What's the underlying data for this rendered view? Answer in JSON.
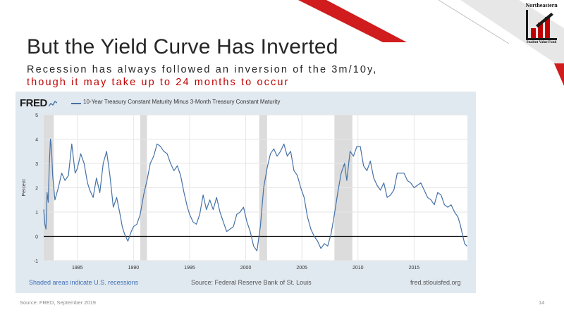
{
  "slide": {
    "title": "But the Yield Curve Has Inverted",
    "subtitle_line1": "Recession has always followed an inversion of the 3m/10y,",
    "subtitle_line2": "though it may take up to 24 months to occur",
    "source": "Source: FRED, September 2019",
    "page_number": "14",
    "colors": {
      "accent_red": "#c00000",
      "title_text": "#262626",
      "deco_gray": "#d9d9d9"
    }
  },
  "logo": {
    "top_text": "Northeastern",
    "bottom_text": "Student Value Fund",
    "icon": "bar-chart-logo-icon"
  },
  "fred": {
    "brand": "FRED",
    "legend": "10-Year Treasury Constant Maturity Minus 3-Month Treasury Constant Maturity",
    "note_left": "Shaded areas indicate U.S. recessions",
    "note_mid": "Source: Federal Reserve Bank of St. Louis",
    "note_right": "fred.stlouisfed.org",
    "panel_color": "#e1e9f0",
    "line_color": "#4572a7",
    "recession_color": "#dcdcdc"
  },
  "chart_data": {
    "type": "line",
    "title": "10-Year Treasury Constant Maturity Minus 3-Month Treasury Constant Maturity",
    "xlabel": "",
    "ylabel": "Percent",
    "xlim": [
      1982.0,
      2019.75
    ],
    "ylim": [
      -1,
      5
    ],
    "yticks": [
      -1,
      0,
      1,
      2,
      3,
      4,
      5
    ],
    "xticks": [
      1985,
      1990,
      1995,
      2000,
      2005,
      2010,
      2015
    ],
    "grid": true,
    "recessions": [
      [
        1982.0,
        1982.9
      ],
      [
        1990.6,
        1991.2
      ],
      [
        2001.2,
        2001.9
      ],
      [
        2007.9,
        2009.5
      ]
    ],
    "reference_line": 0,
    "series": [
      {
        "x": [
          1982.0,
          1982.1,
          1982.2,
          1982.3,
          1982.4,
          1982.5,
          1982.6,
          1982.7,
          1982.8,
          1983.0,
          1983.3,
          1983.6,
          1983.9,
          1984.2,
          1984.5,
          1984.8,
          1985.0,
          1985.3,
          1985.6,
          1985.9,
          1986.1,
          1986.4,
          1986.7,
          1987.0,
          1987.3,
          1987.6,
          1987.9,
          1988.2,
          1988.5,
          1988.8,
          1989.0,
          1989.2,
          1989.5,
          1989.8,
          1990.0,
          1990.3,
          1990.6,
          1990.9,
          1991.2,
          1991.5,
          1991.8,
          1992.1,
          1992.4,
          1992.7,
          1993.0,
          1993.3,
          1993.6,
          1993.9,
          1994.2,
          1994.5,
          1994.8,
          1995.0,
          1995.3,
          1995.6,
          1995.9,
          1996.2,
          1996.5,
          1996.8,
          1997.1,
          1997.4,
          1997.7,
          1998.0,
          1998.3,
          1998.6,
          1998.9,
          1999.2,
          1999.5,
          1999.8,
          2000.1,
          2000.4,
          2000.7,
          2001.0,
          2001.3,
          2001.6,
          2001.9,
          2002.2,
          2002.5,
          2002.8,
          2003.1,
          2003.4,
          2003.7,
          2004.0,
          2004.3,
          2004.6,
          2004.9,
          2005.2,
          2005.5,
          2005.8,
          2006.1,
          2006.4,
          2006.7,
          2007.0,
          2007.3,
          2007.6,
          2007.9,
          2008.2,
          2008.5,
          2008.8,
          2009.0,
          2009.3,
          2009.6,
          2009.9,
          2010.2,
          2010.5,
          2010.8,
          2011.1,
          2011.4,
          2011.7,
          2012.0,
          2012.3,
          2012.6,
          2012.9,
          2013.2,
          2013.5,
          2013.8,
          2014.1,
          2014.4,
          2014.7,
          2015.0,
          2015.3,
          2015.6,
          2015.9,
          2016.2,
          2016.5,
          2016.8,
          2017.1,
          2017.4,
          2017.7,
          2018.0,
          2018.3,
          2018.6,
          2018.9,
          2019.1,
          2019.3,
          2019.5,
          2019.7
        ],
        "y": [
          1.1,
          0.5,
          0.3,
          1.8,
          1.4,
          3.0,
          4.0,
          3.6,
          2.5,
          1.5,
          2.0,
          2.6,
          2.3,
          2.5,
          3.8,
          2.6,
          2.8,
          3.4,
          3.0,
          2.2,
          1.9,
          1.6,
          2.4,
          1.8,
          3.0,
          3.5,
          2.5,
          1.2,
          1.6,
          0.9,
          0.4,
          0.1,
          -0.2,
          0.2,
          0.4,
          0.5,
          0.9,
          1.7,
          2.3,
          3.0,
          3.3,
          3.8,
          3.7,
          3.5,
          3.4,
          3.0,
          2.7,
          2.9,
          2.5,
          1.8,
          1.2,
          0.9,
          0.6,
          0.5,
          0.9,
          1.7,
          1.1,
          1.5,
          1.1,
          1.6,
          1.0,
          0.6,
          0.2,
          0.3,
          0.4,
          0.9,
          1.0,
          1.2,
          0.6,
          0.2,
          -0.4,
          -0.6,
          0.4,
          2.0,
          2.8,
          3.4,
          3.6,
          3.3,
          3.5,
          3.8,
          3.3,
          3.5,
          2.7,
          2.5,
          2.0,
          1.6,
          0.8,
          0.3,
          0.0,
          -0.2,
          -0.5,
          -0.3,
          -0.4,
          0.1,
          0.9,
          1.8,
          2.6,
          3.0,
          2.3,
          3.5,
          3.3,
          3.7,
          3.7,
          2.9,
          2.7,
          3.1,
          2.4,
          2.1,
          1.9,
          2.2,
          1.6,
          1.7,
          1.9,
          2.6,
          2.6,
          2.6,
          2.3,
          2.2,
          2.0,
          2.1,
          2.2,
          1.9,
          1.6,
          1.5,
          1.3,
          1.8,
          1.7,
          1.3,
          1.2,
          1.3,
          1.0,
          0.8,
          0.5,
          0.1,
          -0.3,
          -0.4
        ]
      }
    ]
  }
}
